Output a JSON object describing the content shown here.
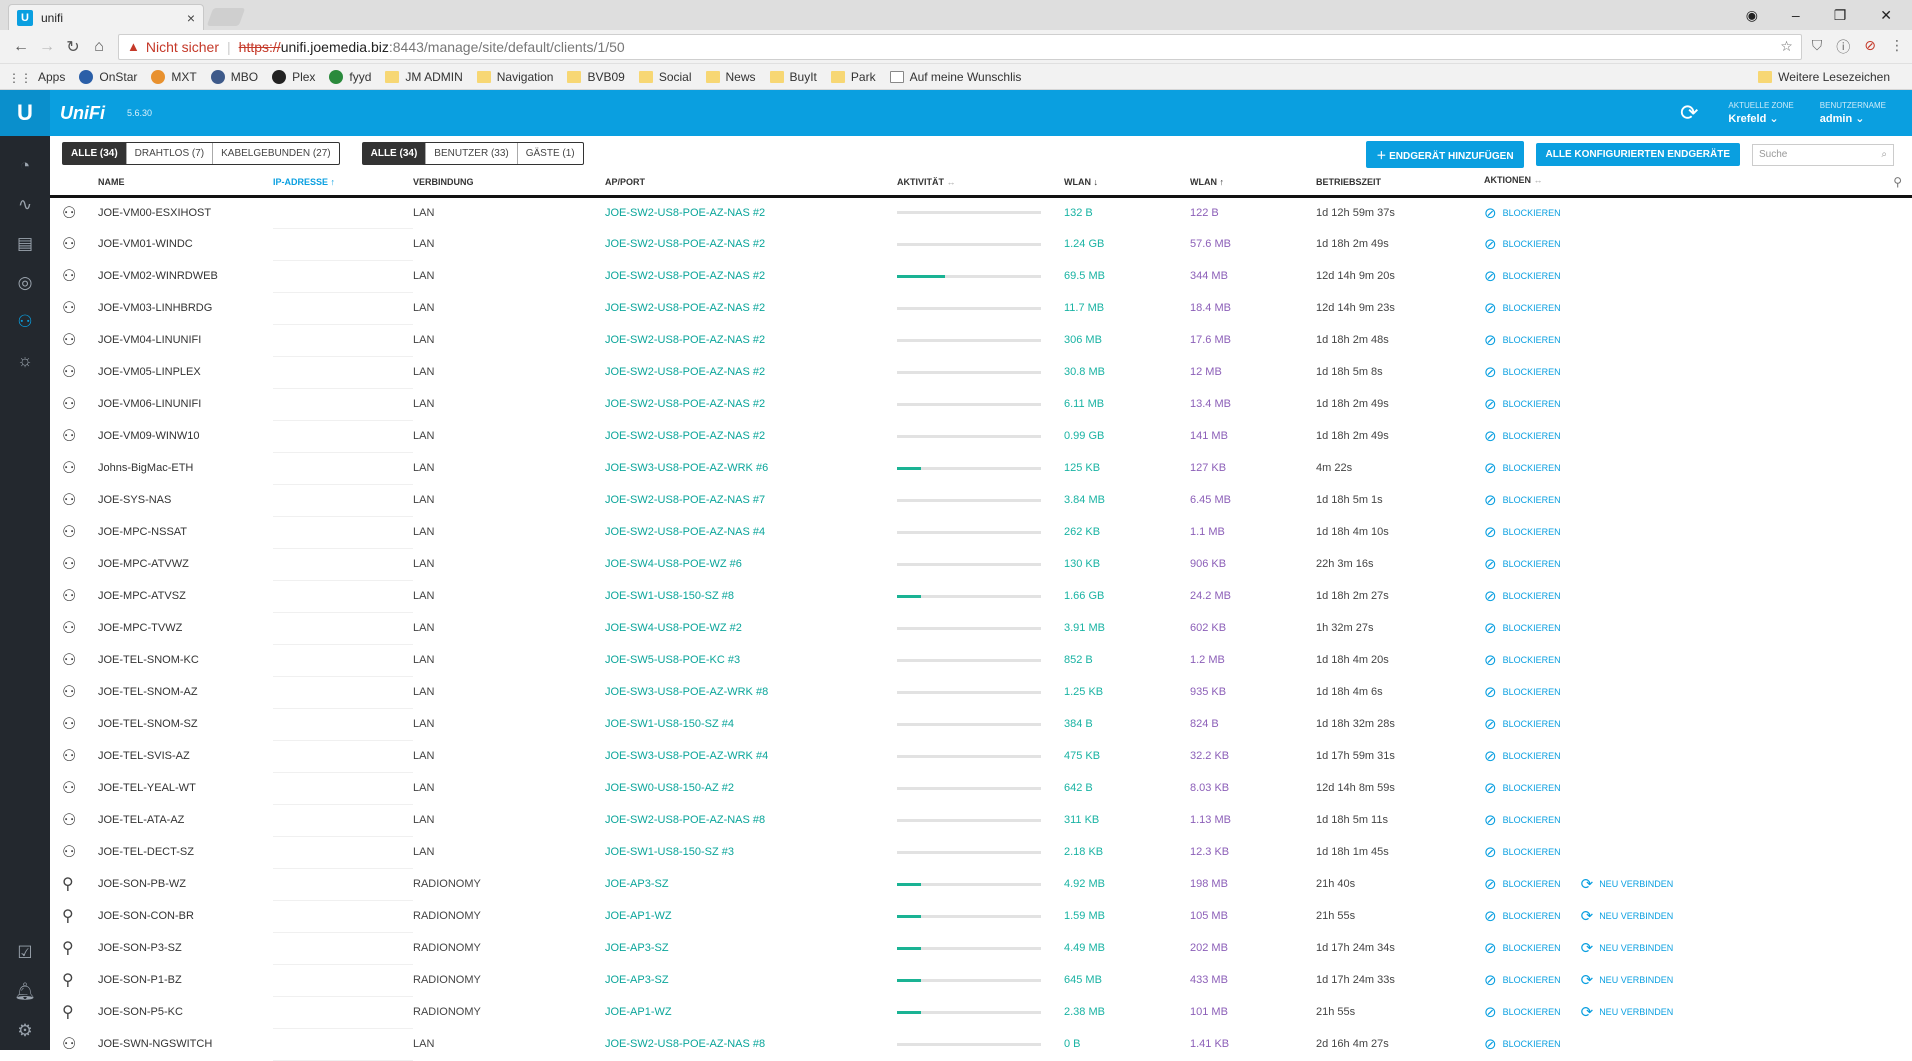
{
  "browser": {
    "tab_title": "unifi",
    "tab_favicon": "U",
    "insecure_label": "Nicht sicher",
    "url_scheme": "https://",
    "url_host": "unifi.joemedia.biz",
    "url_path": ":8443/manage/site/default/clients/1/50",
    "bookmarks": [
      "Apps",
      "OnStar",
      "MXT",
      "MBO",
      "Plex",
      "fyyd",
      "JM ADMIN",
      "Navigation",
      "BVB09",
      "Social",
      "News",
      "BuyIt",
      "Park",
      "Auf meine Wunschlis"
    ],
    "bookmarks_more": "Weitere Lesezeichen"
  },
  "header": {
    "logo": "U",
    "brand": "UniFi",
    "version": "5.6.30",
    "zone_label": "AKTUELLE ZONE",
    "zone_value": "Krefeld",
    "user_label": "BENUTZERNAME",
    "user_value": "admin"
  },
  "filters": {
    "group1": [
      "ALLE (34)",
      "DRAHTLOS (7)",
      "KABELGEBUNDEN (27)"
    ],
    "group2": [
      "ALLE (34)",
      "BENUTZER (33)",
      "GÄSTE (1)"
    ],
    "add_device": "ENDGERÄT HINZUFÜGEN",
    "all_configured": "ALLE KONFIGURIERTEN ENDGERÄTE",
    "search_placeholder": "Suche"
  },
  "table": {
    "columns": [
      "NAME",
      "IP-ADRESSE",
      "VERBINDUNG",
      "AP/PORT",
      "AKTIVITÄT",
      "WLAN",
      "WLAN",
      "BETRIEBSZEIT",
      "AKTIONEN"
    ],
    "block_label": "BLOCKIEREN",
    "reconnect_label": "NEU VERBINDEN",
    "rows": [
      {
        "name": "JOE-VM00-ESXIHOST",
        "conn": "LAN",
        "ap": "JOE-SW2-US8-POE-AZ-NAS #2",
        "activity": 0,
        "down": "132 B",
        "up": "122 B",
        "uptime": "1d 12h 59m 37s",
        "wireless": false
      },
      {
        "name": "JOE-VM01-WINDC",
        "conn": "LAN",
        "ap": "JOE-SW2-US8-POE-AZ-NAS #2",
        "activity": 0,
        "down": "1.24 GB",
        "up": "57.6 MB",
        "uptime": "1d 18h 2m 49s",
        "wireless": false
      },
      {
        "name": "JOE-VM02-WINRDWEB",
        "conn": "LAN",
        "ap": "JOE-SW2-US8-POE-AZ-NAS #2",
        "activity": 0.33,
        "down": "69.5 MB",
        "up": "344 MB",
        "uptime": "12d 14h 9m 20s",
        "wireless": false
      },
      {
        "name": "JOE-VM03-LINHBRDG",
        "conn": "LAN",
        "ap": "JOE-SW2-US8-POE-AZ-NAS #2",
        "activity": 0,
        "down": "11.7 MB",
        "up": "18.4 MB",
        "uptime": "12d 14h 9m 23s",
        "wireless": false
      },
      {
        "name": "JOE-VM04-LINUNIFI",
        "conn": "LAN",
        "ap": "JOE-SW2-US8-POE-AZ-NAS #2",
        "activity": 0,
        "down": "306 MB",
        "up": "17.6 MB",
        "uptime": "1d 18h 2m 48s",
        "wireless": false
      },
      {
        "name": "JOE-VM05-LINPLEX",
        "conn": "LAN",
        "ap": "JOE-SW2-US8-POE-AZ-NAS #2",
        "activity": 0,
        "down": "30.8 MB",
        "up": "12 MB",
        "uptime": "1d 18h 5m 8s",
        "wireless": false
      },
      {
        "name": "JOE-VM06-LINUNIFI",
        "conn": "LAN",
        "ap": "JOE-SW2-US8-POE-AZ-NAS #2",
        "activity": 0,
        "down": "6.11 MB",
        "up": "13.4 MB",
        "uptime": "1d 18h 2m 49s",
        "wireless": false
      },
      {
        "name": "JOE-VM09-WINW10",
        "conn": "LAN",
        "ap": "JOE-SW2-US8-POE-AZ-NAS #2",
        "activity": 0,
        "down": "0.99 GB",
        "up": "141 MB",
        "uptime": "1d 18h 2m 49s",
        "wireless": false
      },
      {
        "name": "Johns-BigMac-ETH",
        "conn": "LAN",
        "ap": "JOE-SW3-US8-POE-AZ-WRK #6",
        "activity": 0.17,
        "down": "125 KB",
        "up": "127 KB",
        "uptime": "4m 22s",
        "wireless": false
      },
      {
        "name": "JOE-SYS-NAS",
        "conn": "LAN",
        "ap": "JOE-SW2-US8-POE-AZ-NAS #7",
        "activity": 0,
        "down": "3.84 MB",
        "up": "6.45 MB",
        "uptime": "1d 18h 5m 1s",
        "wireless": false
      },
      {
        "name": "JOE-MPC-NSSAT",
        "conn": "LAN",
        "ap": "JOE-SW2-US8-POE-AZ-NAS #4",
        "activity": 0,
        "down": "262 KB",
        "up": "1.1 MB",
        "uptime": "1d 18h 4m 10s",
        "wireless": false
      },
      {
        "name": "JOE-MPC-ATVWZ",
        "conn": "LAN",
        "ap": "JOE-SW4-US8-POE-WZ #6",
        "activity": 0,
        "down": "130 KB",
        "up": "906 KB",
        "uptime": "22h 3m 16s",
        "wireless": false
      },
      {
        "name": "JOE-MPC-ATVSZ",
        "conn": "LAN",
        "ap": "JOE-SW1-US8-150-SZ #8",
        "activity": 0.17,
        "down": "1.66 GB",
        "up": "24.2 MB",
        "uptime": "1d 18h 2m 27s",
        "wireless": false
      },
      {
        "name": "JOE-MPC-TVWZ",
        "conn": "LAN",
        "ap": "JOE-SW4-US8-POE-WZ #2",
        "activity": 0,
        "down": "3.91 MB",
        "up": "602 KB",
        "uptime": "1h 32m 27s",
        "wireless": false
      },
      {
        "name": "JOE-TEL-SNOM-KC",
        "conn": "LAN",
        "ap": "JOE-SW5-US8-POE-KC #3",
        "activity": 0,
        "down": "852 B",
        "up": "1.2 MB",
        "uptime": "1d 18h 4m 20s",
        "wireless": false
      },
      {
        "name": "JOE-TEL-SNOM-AZ",
        "conn": "LAN",
        "ap": "JOE-SW3-US8-POE-AZ-WRK #8",
        "activity": 0,
        "down": "1.25 KB",
        "up": "935 KB",
        "uptime": "1d 18h 4m 6s",
        "wireless": false
      },
      {
        "name": "JOE-TEL-SNOM-SZ",
        "conn": "LAN",
        "ap": "JOE-SW1-US8-150-SZ #4",
        "activity": 0,
        "down": "384 B",
        "up": "824 B",
        "uptime": "1d 18h 32m 28s",
        "wireless": false
      },
      {
        "name": "JOE-TEL-SVIS-AZ",
        "conn": "LAN",
        "ap": "JOE-SW3-US8-POE-AZ-WRK #4",
        "activity": 0,
        "down": "475 KB",
        "up": "32.2 KB",
        "uptime": "1d 17h 59m 31s",
        "wireless": false
      },
      {
        "name": "JOE-TEL-YEAL-WT",
        "conn": "LAN",
        "ap": "JOE-SW0-US8-150-AZ #2",
        "activity": 0,
        "down": "642 B",
        "up": "8.03 KB",
        "uptime": "12d 14h 8m 59s",
        "wireless": false
      },
      {
        "name": "JOE-TEL-ATA-AZ",
        "conn": "LAN",
        "ap": "JOE-SW2-US8-POE-AZ-NAS #8",
        "activity": 0,
        "down": "311 KB",
        "up": "1.13 MB",
        "uptime": "1d 18h 5m 11s",
        "wireless": false
      },
      {
        "name": "JOE-TEL-DECT-SZ",
        "conn": "LAN",
        "ap": "JOE-SW1-US8-150-SZ #3",
        "activity": 0,
        "down": "2.18 KB",
        "up": "12.3 KB",
        "uptime": "1d 18h 1m 45s",
        "wireless": false
      },
      {
        "name": "JOE-SON-PB-WZ",
        "conn": "RADIONOMY",
        "ap": "JOE-AP3-SZ",
        "activity": 0.17,
        "down": "4.92 MB",
        "up": "198 MB",
        "uptime": "21h 40s",
        "wireless": true
      },
      {
        "name": "JOE-SON-CON-BR",
        "conn": "RADIONOMY",
        "ap": "JOE-AP1-WZ",
        "activity": 0.17,
        "down": "1.59 MB",
        "up": "105 MB",
        "uptime": "21h 55s",
        "wireless": true
      },
      {
        "name": "JOE-SON-P3-SZ",
        "conn": "RADIONOMY",
        "ap": "JOE-AP3-SZ",
        "activity": 0.17,
        "down": "4.49 MB",
        "up": "202 MB",
        "uptime": "1d 17h 24m 34s",
        "wireless": true
      },
      {
        "name": "JOE-SON-P1-BZ",
        "conn": "RADIONOMY",
        "ap": "JOE-AP3-SZ",
        "activity": 0.17,
        "down": "645 MB",
        "up": "433 MB",
        "uptime": "1d 17h 24m 33s",
        "wireless": true
      },
      {
        "name": "JOE-SON-P5-KC",
        "conn": "RADIONOMY",
        "ap": "JOE-AP1-WZ",
        "activity": 0.17,
        "down": "2.38 MB",
        "up": "101 MB",
        "uptime": "21h 55s",
        "wireless": true
      },
      {
        "name": "JOE-SWN-NGSWITCH",
        "conn": "LAN",
        "ap": "JOE-SW2-US8-POE-AZ-NAS #8",
        "activity": 0,
        "down": "0 B",
        "up": "1.41 KB",
        "uptime": "2d 16h 4m 27s",
        "wireless": false
      }
    ]
  }
}
